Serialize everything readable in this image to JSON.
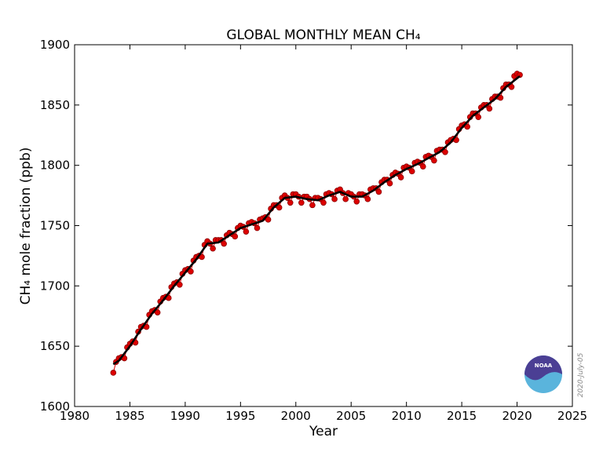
{
  "chart_data": {
    "type": "line",
    "title": "GLOBAL MONTHLY MEAN CH₄",
    "x_label": "Year",
    "y_label": "CH₄ mole fraction (ppb)",
    "date_stamp": "2020-July-05",
    "logo_text": "NOAA",
    "xlim": [
      1980,
      2025
    ],
    "xticks": [
      1980,
      1985,
      1990,
      1995,
      2000,
      2005,
      2010,
      2015,
      2020,
      2025
    ],
    "ylim": [
      1600,
      1900
    ],
    "yticks": [
      1600,
      1650,
      1700,
      1750,
      1800,
      1850,
      1900
    ],
    "series": [
      {
        "style": "markers",
        "color": "#dd0000",
        "x": [
          1983.5,
          1983.75,
          1984,
          1984.25,
          1984.5,
          1984.75,
          1985,
          1985.25,
          1985.5,
          1985.75,
          1986,
          1986.25,
          1986.5,
          1986.75,
          1987,
          1987.25,
          1987.5,
          1987.75,
          1988,
          1988.25,
          1988.5,
          1988.75,
          1989,
          1989.25,
          1989.5,
          1989.75,
          1990,
          1990.25,
          1990.5,
          1990.75,
          1991,
          1991.25,
          1991.5,
          1991.75,
          1992,
          1992.25,
          1992.5,
          1992.75,
          1993,
          1993.25,
          1993.5,
          1993.75,
          1994,
          1994.25,
          1994.5,
          1994.75,
          1995,
          1995.25,
          1995.5,
          1995.75,
          1996,
          1996.25,
          1996.5,
          1996.75,
          1997,
          1997.25,
          1997.5,
          1997.75,
          1998,
          1998.25,
          1998.5,
          1998.75,
          1999,
          1999.25,
          1999.5,
          1999.75,
          2000,
          2000.25,
          2000.5,
          2000.75,
          2001,
          2001.25,
          2001.5,
          2001.75,
          2002,
          2002.25,
          2002.5,
          2002.75,
          2003,
          2003.25,
          2003.5,
          2003.75,
          2004,
          2004.25,
          2004.5,
          2004.75,
          2005,
          2005.25,
          2005.5,
          2005.75,
          2006,
          2006.25,
          2006.5,
          2006.75,
          2007,
          2007.25,
          2007.5,
          2007.75,
          2008,
          2008.25,
          2008.5,
          2008.75,
          2009,
          2009.25,
          2009.5,
          2009.75,
          2010,
          2010.25,
          2010.5,
          2010.75,
          2011,
          2011.25,
          2011.5,
          2011.75,
          2012,
          2012.25,
          2012.5,
          2012.75,
          2013,
          2013.25,
          2013.5,
          2013.75,
          2014,
          2014.25,
          2014.5,
          2014.75,
          2015,
          2015.25,
          2015.5,
          2015.75,
          2016,
          2016.25,
          2016.5,
          2016.75,
          2017,
          2017.25,
          2017.5,
          2017.75,
          2018,
          2018.25,
          2018.5,
          2018.75,
          2019,
          2019.25,
          2019.5,
          2019.75,
          2020,
          2020.25
        ],
        "values": [
          1628,
          1637,
          1640,
          1641,
          1640,
          1649,
          1652,
          1654,
          1653,
          1662,
          1666,
          1667,
          1666,
          1676,
          1679,
          1680,
          1678,
          1687,
          1690,
          1691,
          1690,
          1699,
          1702,
          1703,
          1701,
          1710,
          1713,
          1714,
          1712,
          1721,
          1724,
          1725,
          1724,
          1734,
          1737,
          1735,
          1731,
          1738,
          1738,
          1738,
          1735,
          1742,
          1744,
          1743,
          1741,
          1748,
          1750,
          1749,
          1745,
          1752,
          1753,
          1752,
          1748,
          1755,
          1756,
          1757,
          1755,
          1764,
          1767,
          1767,
          1765,
          1773,
          1775,
          1773,
          1769,
          1776,
          1776,
          1774,
          1769,
          1774,
          1774,
          1772,
          1767,
          1773,
          1773,
          1772,
          1769,
          1776,
          1777,
          1776,
          1772,
          1779,
          1780,
          1777,
          1772,
          1777,
          1776,
          1774,
          1770,
          1776,
          1776,
          1775,
          1772,
          1780,
          1781,
          1781,
          1778,
          1786,
          1788,
          1788,
          1785,
          1792,
          1794,
          1793,
          1790,
          1798,
          1799,
          1798,
          1795,
          1802,
          1803,
          1802,
          1799,
          1807,
          1808,
          1807,
          1804,
          1812,
          1813,
          1813,
          1811,
          1819,
          1821,
          1822,
          1821,
          1830,
          1833,
          1834,
          1832,
          1840,
          1843,
          1843,
          1840,
          1848,
          1850,
          1850,
          1847,
          1855,
          1857,
          1857,
          1856,
          1864,
          1867,
          1867,
          1865,
          1874,
          1876,
          1875
        ]
      },
      {
        "style": "line",
        "color": "#000000",
        "x": [
          1983.5,
          1984,
          1985,
          1986,
          1987,
          1988,
          1989,
          1990,
          1991,
          1992,
          1993,
          1994,
          1995,
          1996,
          1997,
          1998,
          1999,
          2000,
          2001,
          2002,
          2003,
          2004,
          2005,
          2006,
          2007,
          2008,
          2009,
          2010,
          2011,
          2012,
          2013,
          2014,
          2015,
          2016,
          2017,
          2018,
          2019,
          2020.25
        ],
        "values": [
          1635,
          1638,
          1650,
          1664,
          1677,
          1688,
          1700,
          1711,
          1722,
          1735,
          1736,
          1742,
          1748,
          1751,
          1754,
          1765,
          1773,
          1774,
          1772,
          1771,
          1775,
          1778,
          1774,
          1774,
          1779,
          1786,
          1792,
          1797,
          1801,
          1806,
          1811,
          1819,
          1831,
          1841,
          1848,
          1855,
          1865,
          1874
        ]
      }
    ]
  }
}
